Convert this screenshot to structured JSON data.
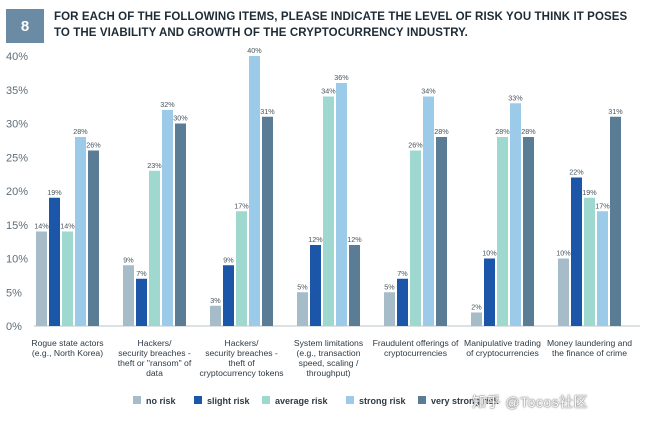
{
  "header": {
    "badge": "8",
    "title": "FOR EACH OF THE FOLLOWING ITEMS, PLEASE INDICATE THE LEVEL OF RISK YOU THINK IT POSES TO THE VIABILITY AND GROWTH OF THE CRYPTOCURRENCY INDUSTRY."
  },
  "watermark": "知乎 @Tocos社区",
  "colors": {
    "badge": "#6b8ba4",
    "no risk": "#a6bcc8",
    "slight risk": "#1b56a8",
    "average risk": "#9fd8cf",
    "strong risk": "#9ccbe9",
    "very strong risk": "#5a7c94"
  },
  "chart_data": {
    "type": "bar",
    "ylim": [
      0,
      40
    ],
    "yticks": [
      "0%",
      "5%",
      "10%",
      "15%",
      "20%",
      "25%",
      "30%",
      "35%",
      "40%"
    ],
    "grid": false,
    "legend_position": "bottom",
    "categories": [
      [
        "Rogue state actors",
        "(e.g., North Korea)"
      ],
      [
        "Hackers/",
        "security breaches -",
        "theft or \"ransom\" of",
        "data"
      ],
      [
        "Hackers/",
        "security breaches -",
        "theft of",
        "cryptocurrency tokens"
      ],
      [
        "System limitations",
        "(e.g., transaction",
        "speed, scaling /",
        "throughput)"
      ],
      [
        "Fraudulent offerings of",
        "cryptocurrencies"
      ],
      [
        "Manipulative trading",
        "of cryptocurrencies"
      ],
      [
        "Money laundering and",
        "the finance of crime"
      ]
    ],
    "series": [
      {
        "name": "no risk",
        "values": [
          14,
          9,
          3,
          5,
          5,
          2,
          10
        ]
      },
      {
        "name": "slight risk",
        "values": [
          19,
          7,
          9,
          12,
          7,
          10,
          22
        ]
      },
      {
        "name": "average risk",
        "values": [
          14,
          23,
          17,
          34,
          26,
          28,
          19
        ]
      },
      {
        "name": "strong risk",
        "values": [
          28,
          32,
          40,
          36,
          34,
          33,
          17
        ]
      },
      {
        "name": "very strong risk",
        "values": [
          26,
          30,
          31,
          12,
          28,
          28,
          31
        ]
      }
    ]
  }
}
